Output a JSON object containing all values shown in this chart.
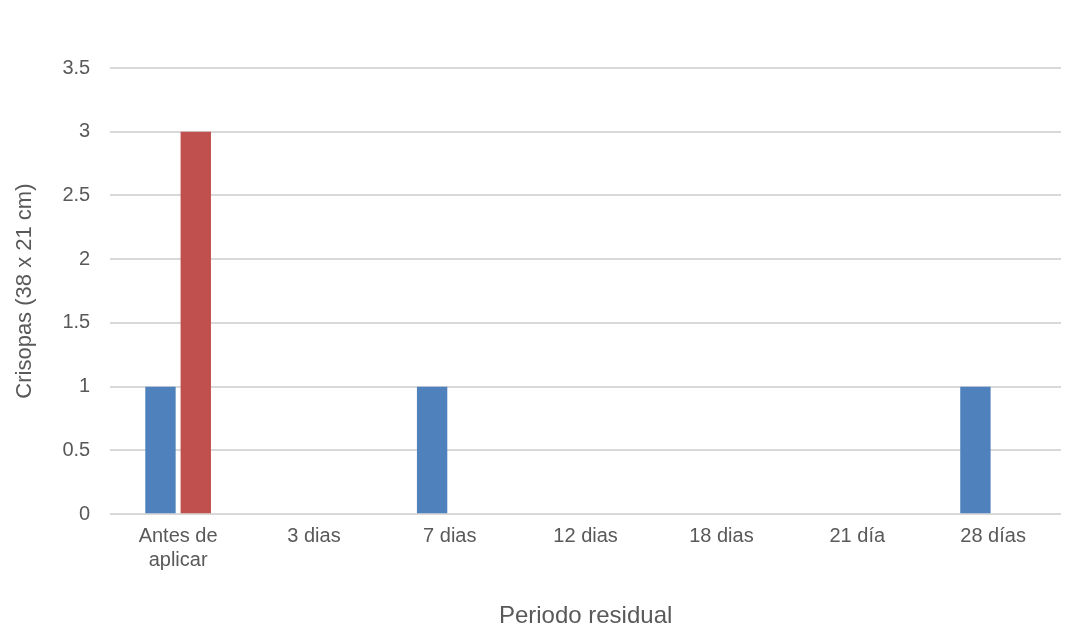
{
  "chart_data": {
    "type": "bar",
    "xlabel": "Periodo residual",
    "ylabel": "Crisopas (38 x 21 cm)",
    "categories": [
      "Antes de aplicar",
      "3 dias",
      "7 dias",
      "12 dias",
      "18 dias",
      "21 día",
      "28 días"
    ],
    "series": [
      {
        "color": "#4f81bd",
        "values": [
          1,
          0,
          1,
          0,
          0,
          0,
          1
        ]
      },
      {
        "color": "#c0504d",
        "values": [
          3,
          0,
          0,
          0,
          0,
          0,
          0
        ]
      }
    ],
    "ylim": [
      0,
      3.5
    ],
    "yticks": [
      0,
      0.5,
      1,
      1.5,
      2,
      2.5,
      3,
      3.5
    ],
    "grid": "y",
    "legend": false
  }
}
